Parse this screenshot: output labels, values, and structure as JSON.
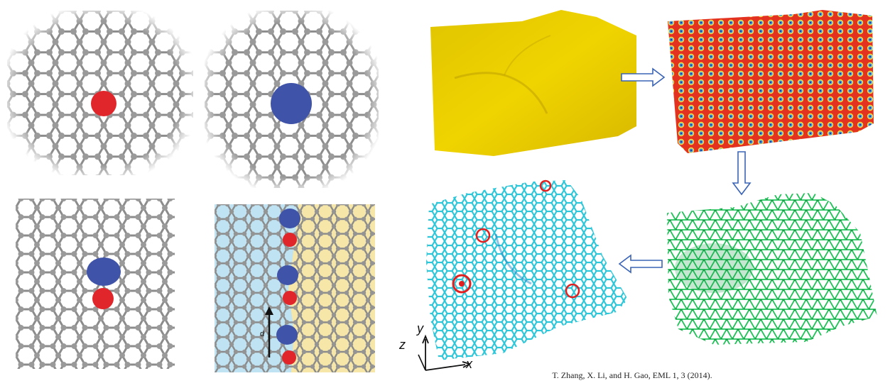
{
  "figure": {
    "citation": "T. Zhang, X. Li, and H. Gao, EML 1, 3 (2014).",
    "distance_label": "d",
    "axes": {
      "x": "x",
      "y": "y",
      "z": "z"
    },
    "colors": {
      "carbon": "#8c8c8c",
      "dopant_red": "#e0262b",
      "dopant_blue": "#3f53a8",
      "domain_left": "#bfe3f2",
      "domain_right": "#f6e7a8",
      "surface_yellow": "#e6c800",
      "surface_red": "#e33320",
      "surface_spot": "#4aa0e6",
      "mesh_green": "#22c25a",
      "mesh_cyan": "#2ec6d8",
      "defect_red": "#e02020",
      "arrow": "#3a63b5"
    },
    "panels": [
      "graphene-defect-single-red",
      "graphene-defect-single-blue",
      "graphene-defect-blue-red-pair",
      "grain-boundary-domains",
      "yellow-surface",
      "phase-field-surface",
      "triangular-mesh-surface",
      "hexagonal-lattice-surface"
    ]
  }
}
